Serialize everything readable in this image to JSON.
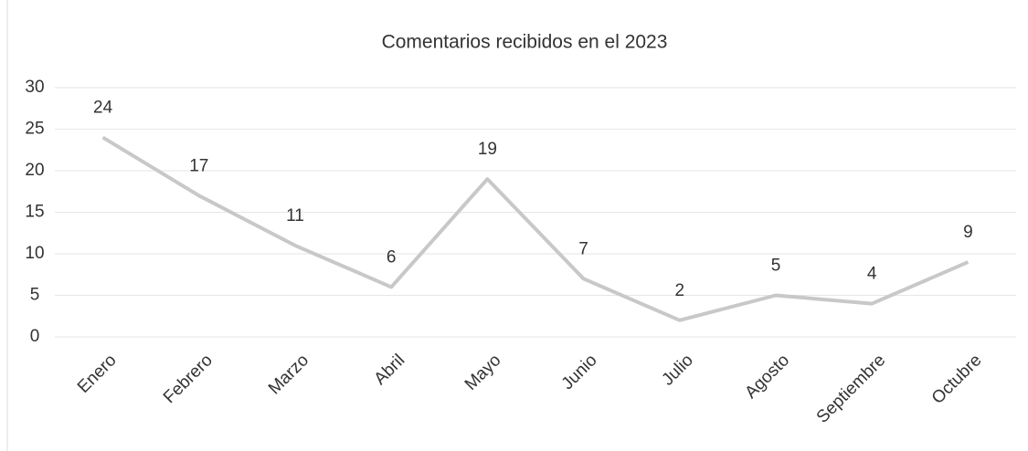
{
  "chart_data": {
    "type": "line",
    "title": "Comentarios recibidos en el 2023",
    "categories": [
      "Enero",
      "Febrero",
      "Marzo",
      "Abril",
      "Mayo",
      "Junio",
      "Julio",
      "Agosto",
      "Septiembre",
      "Octubre"
    ],
    "values": [
      24,
      17,
      11,
      6,
      19,
      7,
      2,
      5,
      4,
      9
    ],
    "color": "#c8c8c8",
    "ylim": [
      0,
      30
    ],
    "yticks": [
      0,
      5,
      10,
      15,
      20,
      25,
      30
    ],
    "grid": true
  }
}
